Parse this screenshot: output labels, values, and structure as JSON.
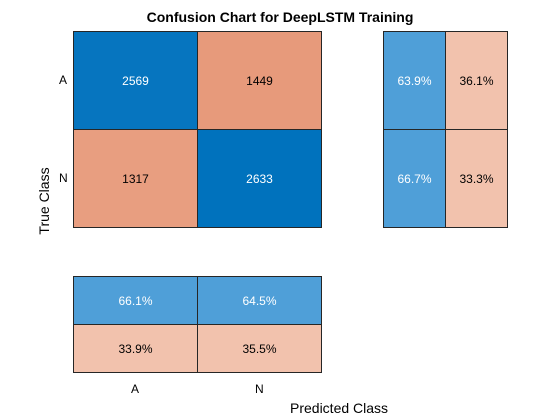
{
  "chart_data": {
    "type": "heatmap",
    "title": "Confusion Chart for DeepLSTM Training",
    "xlabel": "Predicted Class",
    "ylabel": "True Class",
    "classes": [
      "A",
      "N"
    ],
    "matrix": [
      [
        2569,
        1449
      ],
      [
        1317,
        2633
      ]
    ],
    "row_summary": [
      [
        "63.9%",
        "36.1%"
      ],
      [
        "66.7%",
        "33.3%"
      ]
    ],
    "column_summary": [
      [
        "66.1%",
        "64.5%"
      ],
      [
        "33.9%",
        "35.5%"
      ]
    ],
    "colors": {
      "correct": "#0072BD",
      "incorrect": "#E79A7B",
      "summary_correct": "#4F9FD8",
      "summary_incorrect": "#F2C2AD",
      "edge": "#262626"
    }
  }
}
